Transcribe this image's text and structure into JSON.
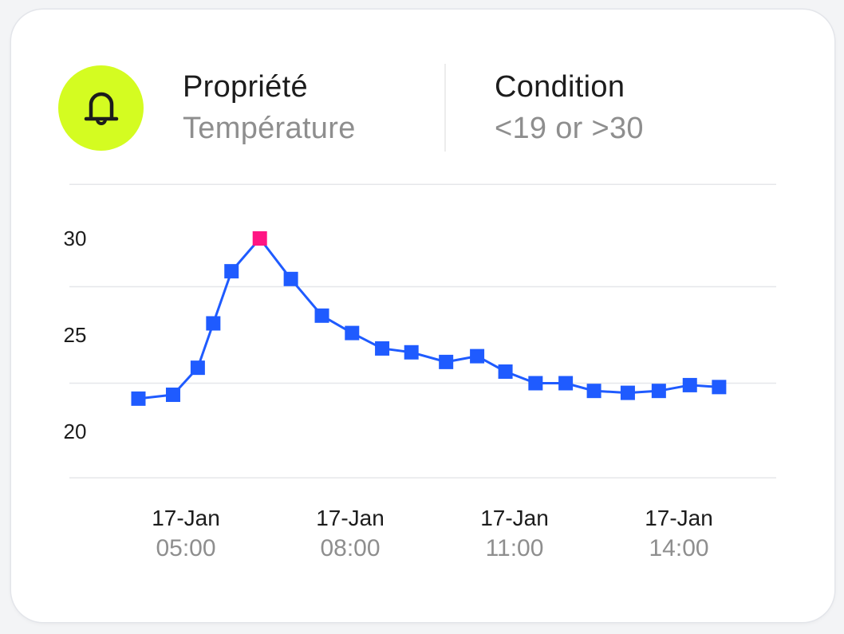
{
  "header": {
    "icon": "bell-icon",
    "icon_bg": "#d4fc21",
    "property_label": "Propriété",
    "property_value": "Température",
    "condition_label": "Condition",
    "condition_value": "<19 or >30"
  },
  "chart_data": {
    "type": "line",
    "ylim": [
      17.6,
      32.8
    ],
    "yticks": [
      "30",
      "25",
      "20"
    ],
    "ytick_values": [
      30,
      25,
      20
    ],
    "grid": true,
    "xticks": [
      {
        "date": "17-Jan",
        "time": "05:00"
      },
      {
        "date": "17-Jan",
        "time": "08:00"
      },
      {
        "date": "17-Jan",
        "time": "11:00"
      },
      {
        "date": "17-Jan",
        "time": "14:00"
      }
    ],
    "line_color": "#1f5bff",
    "alert_color": "#ff1583",
    "series": [
      {
        "x": [
          "04:08",
          "04:46",
          "05:13",
          "05:30",
          "05:50",
          "06:21",
          "06:55",
          "07:29",
          "08:02",
          "08:35",
          "09:07",
          "09:45",
          "10:19",
          "10:50",
          "11:23",
          "11:56",
          "12:27",
          "13:04",
          "13:38",
          "14:12",
          "14:44"
        ],
        "values": [
          21.7,
          21.9,
          23.3,
          25.6,
          28.3,
          30.0,
          27.9,
          26.0,
          25.1,
          24.3,
          24.1,
          23.6,
          23.9,
          23.1,
          22.5,
          22.5,
          22.1,
          22.0,
          22.1,
          22.4,
          22.3
        ],
        "alert": [
          false,
          false,
          false,
          false,
          false,
          true,
          false,
          false,
          false,
          false,
          false,
          false,
          false,
          false,
          false,
          false,
          false,
          false,
          false,
          false,
          false
        ]
      }
    ]
  }
}
